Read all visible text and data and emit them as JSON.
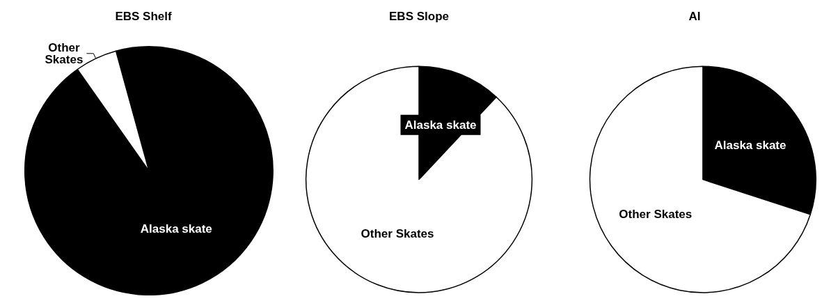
{
  "chart_data": [
    {
      "type": "pie",
      "title": "EBS Shelf",
      "categories": [
        "Alaska skate",
        "Other Skates"
      ],
      "values": [
        94.5,
        5.5
      ],
      "colors": [
        "#000000",
        "#ffffff"
      ]
    },
    {
      "type": "pie",
      "title": "EBS Slope",
      "categories": [
        "Alaska skate",
        "Other Skates"
      ],
      "values": [
        12,
        88
      ],
      "colors": [
        "#000000",
        "#ffffff"
      ]
    },
    {
      "type": "pie",
      "title": "AI",
      "categories": [
        "Alaska skate",
        "Other Skates"
      ],
      "values": [
        30,
        70
      ],
      "colors": [
        "#000000",
        "#ffffff"
      ]
    }
  ]
}
